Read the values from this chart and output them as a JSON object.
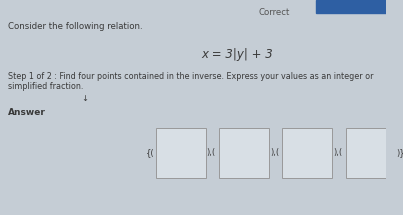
{
  "bg_color": "#c5cdd5",
  "header_text": "Correct",
  "header_bar_color": "#2e5fa3",
  "title_line1": "Consider the following relation.",
  "equation": "x = 3|y| + 3",
  "step_text": "Step 1 of 2 : Find four points contained in the inverse. Express your values as an integer or simplified fraction.",
  "step_sub": "↓",
  "answer_label": "Answer",
  "box_color": "#d8dfe5",
  "box_edge_color": "#999999",
  "text_color": "#3a3a3a",
  "font_size_title": 6.2,
  "font_size_eq": 8.5,
  "font_size_step": 5.8,
  "font_size_answer": 6.5,
  "font_size_bracket": 6.0,
  "font_size_header": 6.2
}
